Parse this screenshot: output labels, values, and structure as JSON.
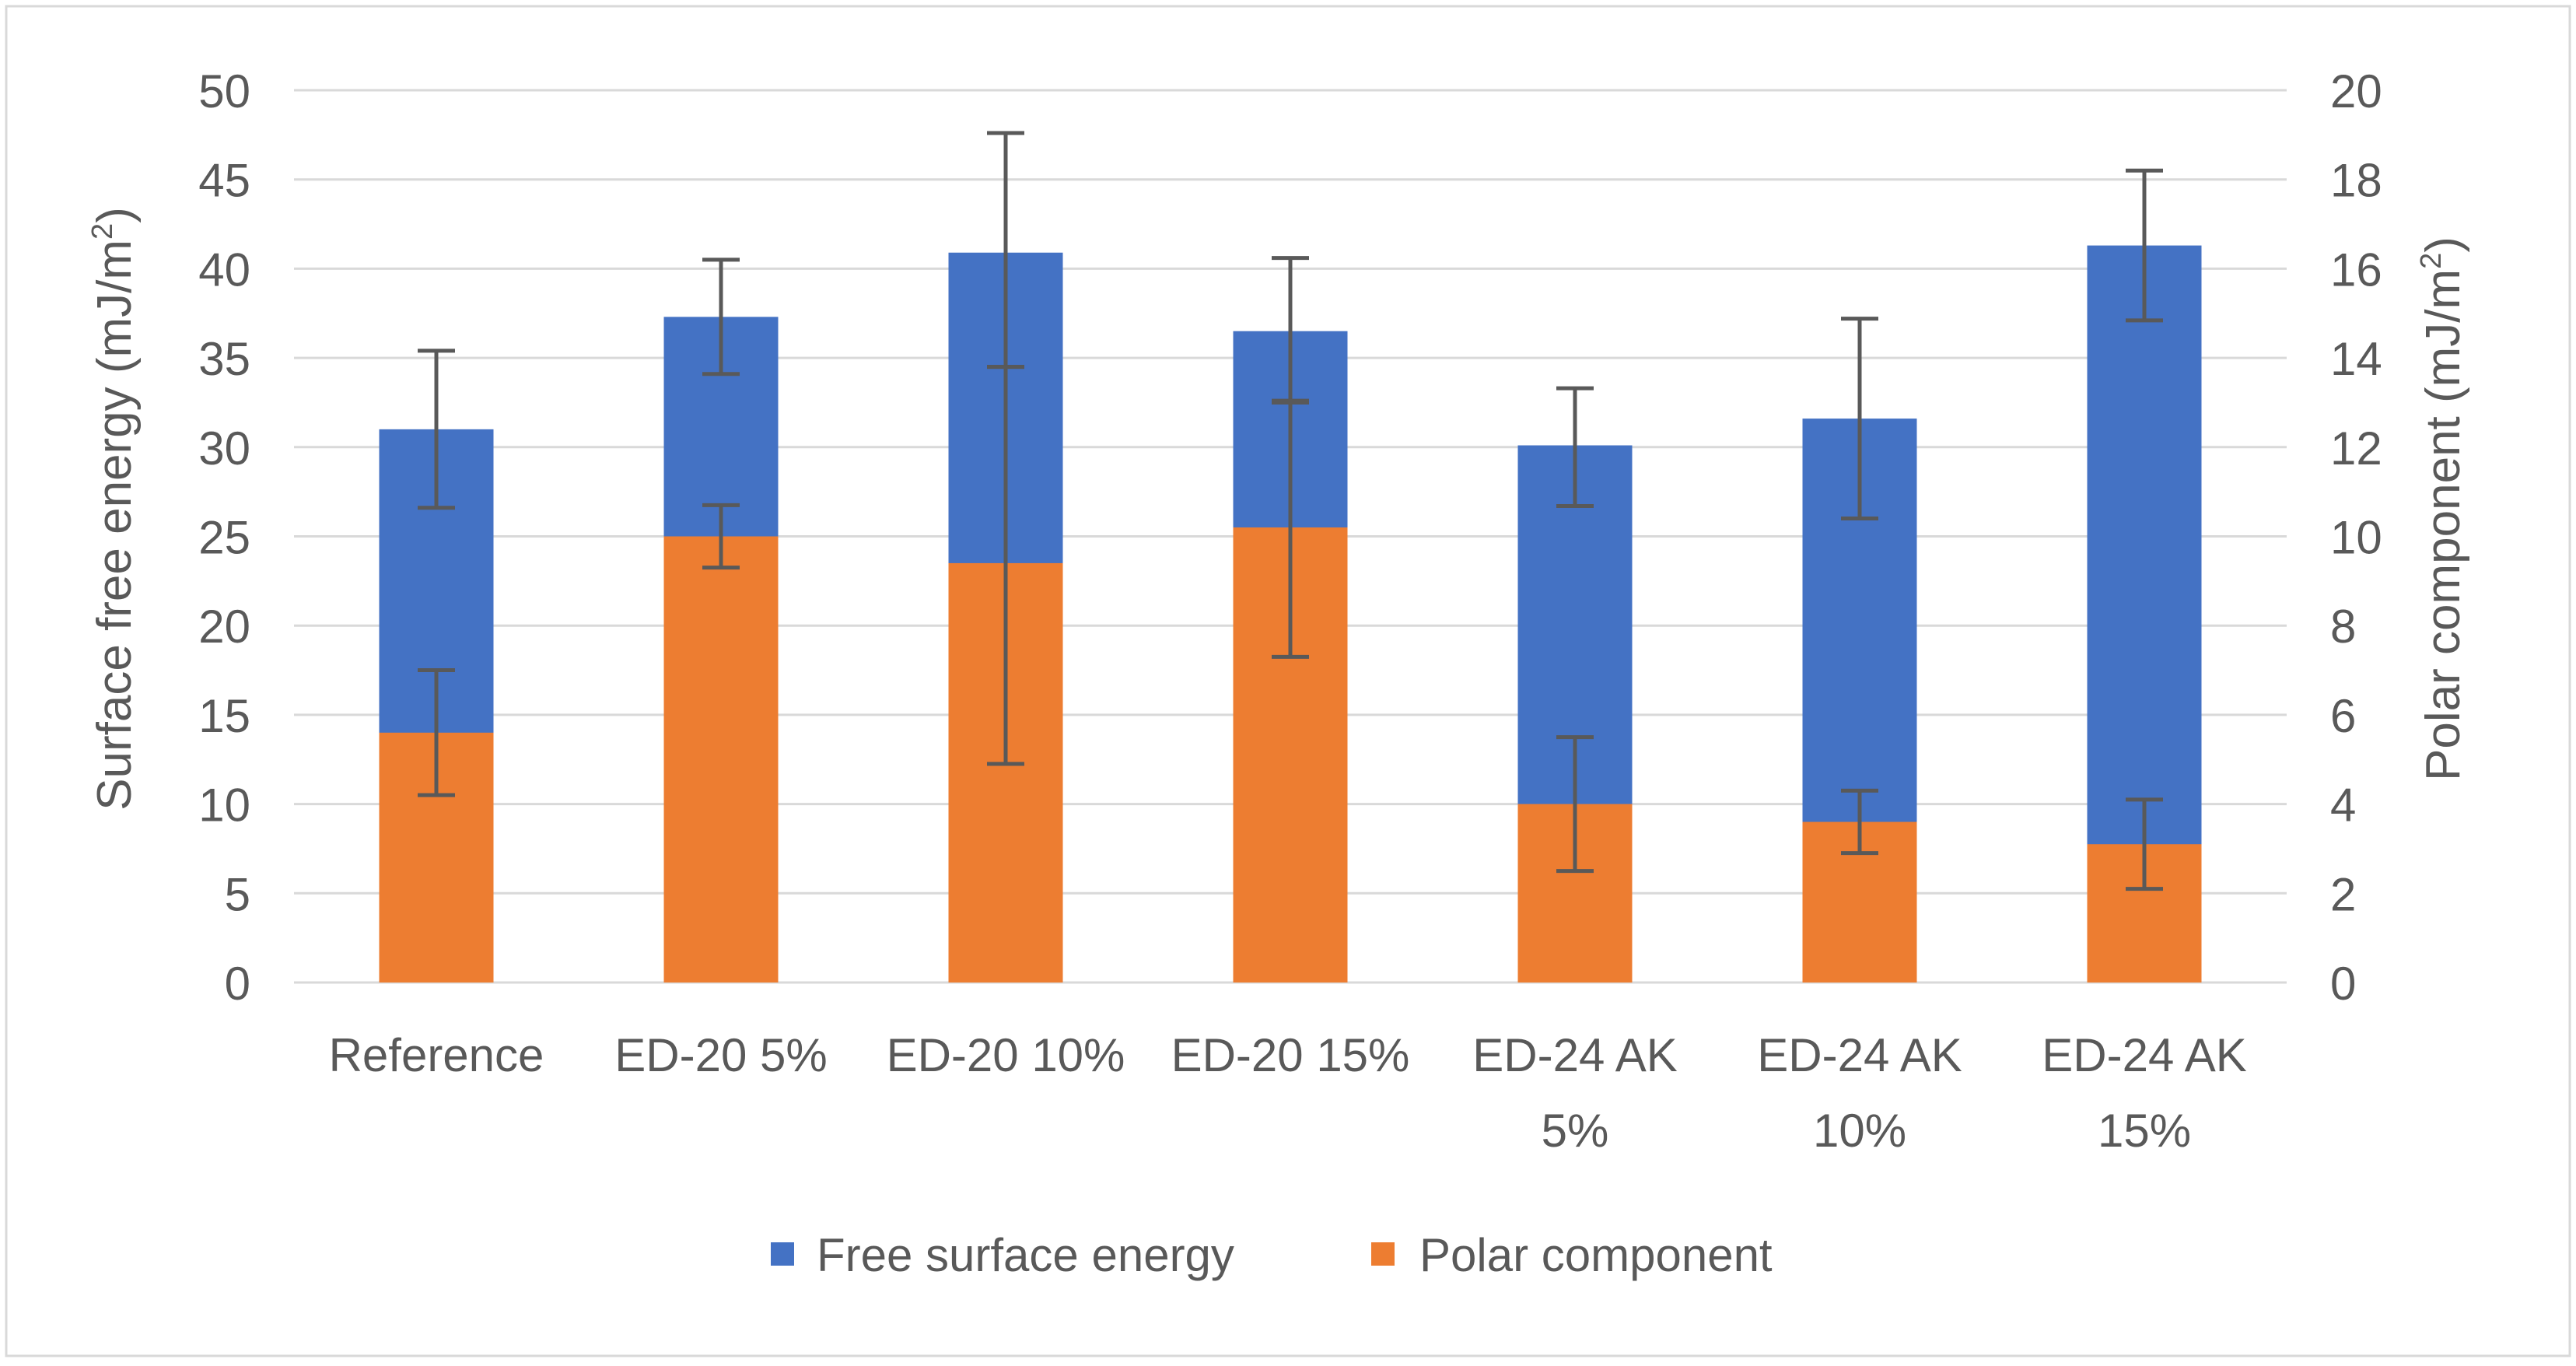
{
  "chart_data": {
    "type": "bar",
    "stacked_overlay": true,
    "categories": [
      [
        "Reference"
      ],
      [
        "ED-20 5%"
      ],
      [
        "ED-20 10%"
      ],
      [
        "ED-20 15%"
      ],
      [
        "ED-24 AK",
        "5%"
      ],
      [
        "ED-24 AK",
        "10%"
      ],
      [
        "ED-24 AK",
        "15%"
      ]
    ],
    "series": [
      {
        "name": "Free surface energy",
        "axis": "left",
        "color": "#4472C4",
        "values": [
          31,
          37.3,
          40.9,
          36.5,
          30.1,
          31.6,
          41.3
        ],
        "error_bars": [
          [
            26.6,
            35.4
          ],
          [
            34.1,
            40.5
          ],
          [
            34.5,
            47.6
          ],
          [
            32.6,
            40.6
          ],
          [
            26.7,
            33.3
          ],
          [
            26.0,
            37.2
          ],
          [
            37.1,
            45.5
          ]
        ]
      },
      {
        "name": "Polar component",
        "axis": "right",
        "color": "#ED7D31",
        "values": [
          5.6,
          10.0,
          9.4,
          10.2,
          4.0,
          3.6,
          3.1
        ],
        "error_bars": [
          [
            4.2,
            7.0
          ],
          [
            9.3,
            10.7
          ],
          [
            4.9,
            13.8
          ],
          [
            7.3,
            13.0
          ],
          [
            2.5,
            5.5
          ],
          [
            2.9,
            4.3
          ],
          [
            2.1,
            4.1
          ]
        ]
      }
    ],
    "left_axis": {
      "label": "Surface free energy (mJ/m",
      "label_sup": "2",
      "label_close": ")",
      "ylim": [
        0,
        50
      ],
      "ticks": [
        "0",
        "5",
        "10",
        "15",
        "20",
        "25",
        "30",
        "35",
        "40",
        "45",
        "50"
      ]
    },
    "right_axis": {
      "label": "Polar component (mJ/m",
      "label_sup": "2",
      "label_close": ")",
      "ylim": [
        0,
        20
      ],
      "ticks": [
        "0",
        "2",
        "4",
        "6",
        "8",
        "10",
        "12",
        "14",
        "16",
        "18",
        "20"
      ]
    },
    "legend_position": "bottom",
    "grid": true,
    "gridline_color": "#D9D9D9",
    "errorbar_color": "#595959",
    "axis_text_color": "#595959"
  }
}
